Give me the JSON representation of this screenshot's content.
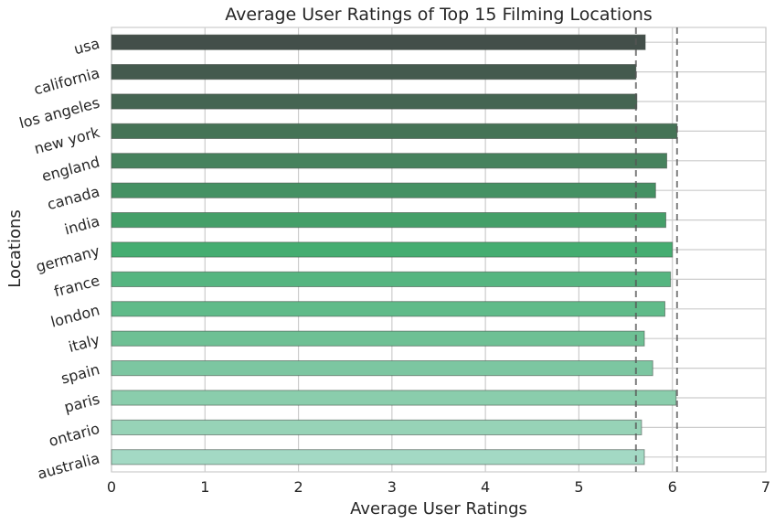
{
  "chart_data": {
    "type": "bar",
    "orientation": "horizontal",
    "title": "Average User Ratings of Top 15 Filming Locations",
    "xlabel": "Average User Ratings",
    "ylabel": "Locations",
    "xlim": [
      0,
      7
    ],
    "xticks": [
      "0",
      "1",
      "2",
      "3",
      "4",
      "5",
      "6",
      "7"
    ],
    "categories": [
      "usa",
      "california",
      "los angeles",
      "new york",
      "england",
      "canada",
      "india",
      "germany",
      "france",
      "london",
      "italy",
      "spain",
      "paris",
      "ontario",
      "australia"
    ],
    "values": [
      5.71,
      5.61,
      5.62,
      6.05,
      5.94,
      5.82,
      5.93,
      6.0,
      5.98,
      5.92,
      5.7,
      5.79,
      6.04,
      5.67,
      5.7
    ],
    "reference_lines": [
      5.61,
      6.05
    ],
    "colors": [
      "#434f4a",
      "#445a4e",
      "#456552",
      "#457356",
      "#46825d",
      "#449163",
      "#449f68",
      "#45ad71",
      "#55b580",
      "#5fbb89",
      "#6ec094",
      "#7cc6a1",
      "#8acdac",
      "#97d3b7",
      "#a3d9c4"
    ],
    "grid": true,
    "legend": "none"
  }
}
